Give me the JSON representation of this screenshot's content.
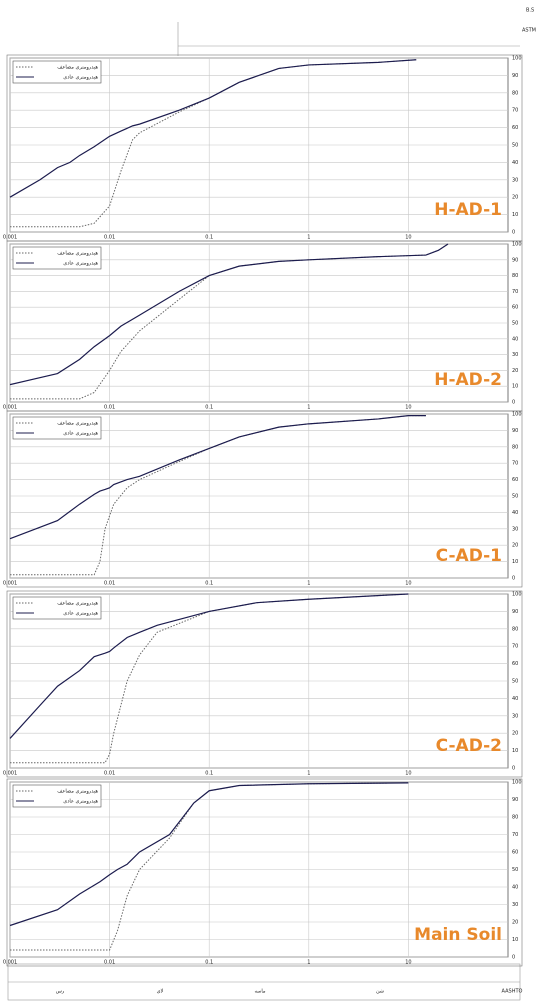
{
  "header": {
    "standard_1": "B.S",
    "standard_2": "ASTM"
  },
  "footer": {
    "clay": "رس",
    "silt": "لای",
    "sand": "ماسه",
    "gravel": "شن",
    "system": "AASHTO"
  },
  "chart_data": [
    {
      "type": "line",
      "annotation": "H-AD-1",
      "log_x": true,
      "grid": true,
      "legend": "top-left",
      "xlim": [
        0.001,
        100
      ],
      "xticks": [
        0.001,
        0.01,
        0.1,
        1,
        10
      ],
      "ylim": [
        0,
        100
      ],
      "yticks": [
        0,
        10,
        20,
        30,
        40,
        50,
        60,
        70,
        80,
        90,
        100
      ],
      "x": [
        0.001,
        0.002,
        0.003,
        0.004,
        0.005,
        0.007,
        0.01,
        0.013,
        0.017,
        0.02,
        0.05,
        0.1,
        0.2,
        0.5,
        1,
        5,
        12
      ],
      "series": [
        {
          "name": "هیدرومتری مضاعف",
          "color": "#666666",
          "dashed": true,
          "values": [
            3,
            3,
            3,
            3,
            3,
            5,
            15,
            35,
            53,
            57,
            69,
            77,
            86,
            94,
            96,
            97.5,
            99
          ]
        },
        {
          "name": "هیدرومتری عادی",
          "color": "#1c1c4e",
          "dashed": false,
          "values": [
            20,
            30,
            37,
            40,
            44,
            49,
            55,
            58,
            61,
            62,
            70,
            77,
            86,
            94,
            96,
            97.5,
            99
          ]
        }
      ]
    },
    {
      "type": "line",
      "annotation": "H-AD-2",
      "log_x": true,
      "grid": true,
      "legend": "top-left",
      "xlim": [
        0.001,
        100
      ],
      "xticks": [
        0.001,
        0.01,
        0.1,
        1,
        10
      ],
      "ylim": [
        0,
        100
      ],
      "yticks": [
        0,
        10,
        20,
        30,
        40,
        50,
        60,
        70,
        80,
        90,
        100
      ],
      "x": [
        0.001,
        0.003,
        0.005,
        0.007,
        0.01,
        0.013,
        0.02,
        0.05,
        0.1,
        0.2,
        0.5,
        1,
        5,
        15,
        20,
        25
      ],
      "series": [
        {
          "name": "هیدرومتری مضاعف",
          "color": "#666666",
          "dashed": true,
          "values": [
            2,
            2,
            2,
            6,
            20,
            32,
            45,
            65,
            80,
            86,
            89,
            90,
            92,
            93,
            96,
            100
          ]
        },
        {
          "name": "هیدرومتری عادی",
          "color": "#1c1c4e",
          "dashed": false,
          "values": [
            11,
            18,
            27,
            35,
            42,
            48,
            55,
            70,
            80,
            86,
            89,
            90,
            92,
            93,
            96,
            100
          ]
        }
      ]
    },
    {
      "type": "line",
      "annotation": "C-AD-1",
      "log_x": true,
      "grid": true,
      "legend": "top-left",
      "xlim": [
        0.001,
        100
      ],
      "xticks": [
        0.001,
        0.01,
        0.1,
        1,
        10
      ],
      "ylim": [
        0,
        100
      ],
      "yticks": [
        0,
        10,
        20,
        30,
        40,
        50,
        60,
        70,
        80,
        90,
        100
      ],
      "x": [
        0.001,
        0.003,
        0.005,
        0.007,
        0.008,
        0.009,
        0.01,
        0.011,
        0.015,
        0.02,
        0.05,
        0.1,
        0.2,
        0.5,
        1,
        5,
        10,
        15
      ],
      "series": [
        {
          "name": "هیدرومتری مضاعف",
          "color": "#666666",
          "dashed": true,
          "values": [
            2,
            2,
            2,
            2,
            10,
            30,
            38,
            45,
            55,
            60,
            71,
            79,
            86,
            92,
            94,
            97,
            99,
            99
          ]
        },
        {
          "name": "هیدرومتری عادی",
          "color": "#1c1c4e",
          "dashed": false,
          "values": [
            24,
            35,
            45,
            51,
            53,
            54,
            55,
            57,
            60,
            62,
            72,
            79,
            86,
            92,
            94,
            97,
            99,
            99
          ]
        }
      ]
    },
    {
      "type": "line",
      "annotation": "C-AD-2",
      "log_x": true,
      "grid": true,
      "legend": "top-left",
      "xlim": [
        0.001,
        100
      ],
      "xticks": [
        0.001,
        0.01,
        0.1,
        1,
        10
      ],
      "ylim": [
        0,
        100
      ],
      "yticks": [
        0,
        10,
        20,
        30,
        40,
        50,
        60,
        70,
        80,
        90,
        100
      ],
      "x": [
        0.001,
        0.002,
        0.003,
        0.005,
        0.007,
        0.009,
        0.01,
        0.011,
        0.015,
        0.02,
        0.03,
        0.1,
        0.3,
        1,
        10
      ],
      "series": [
        {
          "name": "هیدرومتری مضاعف",
          "color": "#666666",
          "dashed": true,
          "values": [
            3,
            3,
            3,
            3,
            3,
            3,
            8,
            20,
            50,
            65,
            78,
            90,
            95,
            97,
            100
          ]
        },
        {
          "name": "هیدرومتری عادی",
          "color": "#1c1c4e",
          "dashed": false,
          "values": [
            17,
            36,
            47,
            56,
            64,
            66,
            67,
            69,
            75,
            78,
            82,
            90,
            95,
            97,
            100
          ]
        }
      ]
    },
    {
      "type": "line",
      "annotation": "Main Soil",
      "log_x": true,
      "grid": true,
      "legend": "top-left",
      "xlim": [
        0.001,
        100
      ],
      "xticks": [
        0.001,
        0.01,
        0.1,
        1,
        10
      ],
      "ylim": [
        0,
        100
      ],
      "yticks": [
        0,
        10,
        20,
        30,
        40,
        50,
        60,
        70,
        80,
        90,
        100
      ],
      "x": [
        0.001,
        0.003,
        0.005,
        0.008,
        0.01,
        0.012,
        0.015,
        0.02,
        0.04,
        0.07,
        0.1,
        0.2,
        1,
        10
      ],
      "series": [
        {
          "name": "هیدرومتری مضاعف",
          "color": "#666666",
          "dashed": true,
          "values": [
            4,
            4,
            4,
            4,
            4,
            15,
            35,
            50,
            68,
            88,
            95,
            98,
            99,
            99.5
          ]
        },
        {
          "name": "هیدرومتری عادی",
          "color": "#1c1c4e",
          "dashed": false,
          "values": [
            18,
            27,
            36,
            43,
            47,
            50,
            53,
            60,
            70,
            88,
            95,
            98,
            99,
            99.5
          ]
        }
      ]
    }
  ]
}
